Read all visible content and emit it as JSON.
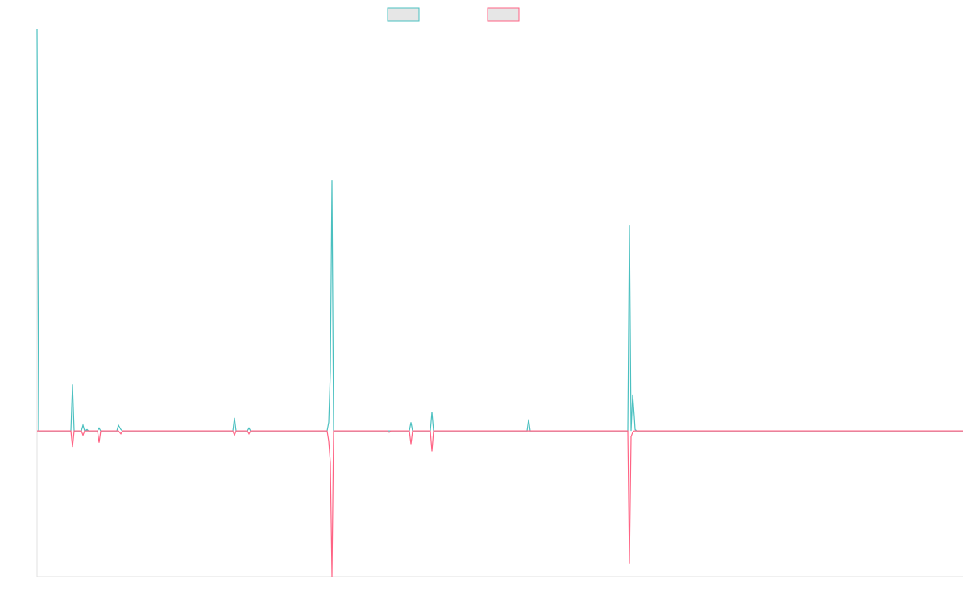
{
  "chart_data": {
    "type": "line",
    "x": [
      0,
      2,
      42,
      44,
      46,
      55,
      57,
      59,
      62,
      64,
      75,
      77,
      79,
      99,
      101,
      104,
      106,
      243,
      245,
      247,
      261,
      263,
      265,
      360,
      362,
      364,
      366,
      368,
      435,
      437,
      439,
      462,
      464,
      466,
      488,
      490,
      492,
      608,
      610,
      612,
      733,
      735,
      737,
      739,
      741,
      742,
      744,
      1149
    ],
    "series": [
      {
        "color": "#4bc0c0",
        "values": [
          276,
          0,
          0,
          32,
          0,
          0,
          4,
          0,
          1,
          0,
          0,
          2,
          0,
          0,
          4,
          1,
          0,
          0,
          9,
          0,
          0,
          2,
          0,
          0,
          6,
          41,
          172,
          0,
          0,
          0,
          0,
          0,
          6,
          0,
          0,
          13,
          0,
          0,
          8,
          0,
          0,
          141,
          0,
          25,
          10,
          1,
          0,
          0
        ]
      },
      {
        "color": "#ff6384",
        "values": [
          0,
          0,
          0,
          -11,
          0,
          0,
          -3,
          0,
          0,
          0,
          0,
          -8,
          0,
          0,
          0,
          -2,
          0,
          0,
          -3,
          0,
          0,
          -2,
          0,
          0,
          -7,
          -22,
          -100,
          0,
          0,
          -1,
          0,
          0,
          -9,
          0,
          0,
          -14,
          0,
          0,
          0,
          0,
          0,
          -91,
          -4,
          -1,
          0,
          0,
          0,
          0
        ]
      }
    ],
    "xlim": [
      0,
      1149
    ],
    "ylim": [
      -100,
      276
    ]
  }
}
